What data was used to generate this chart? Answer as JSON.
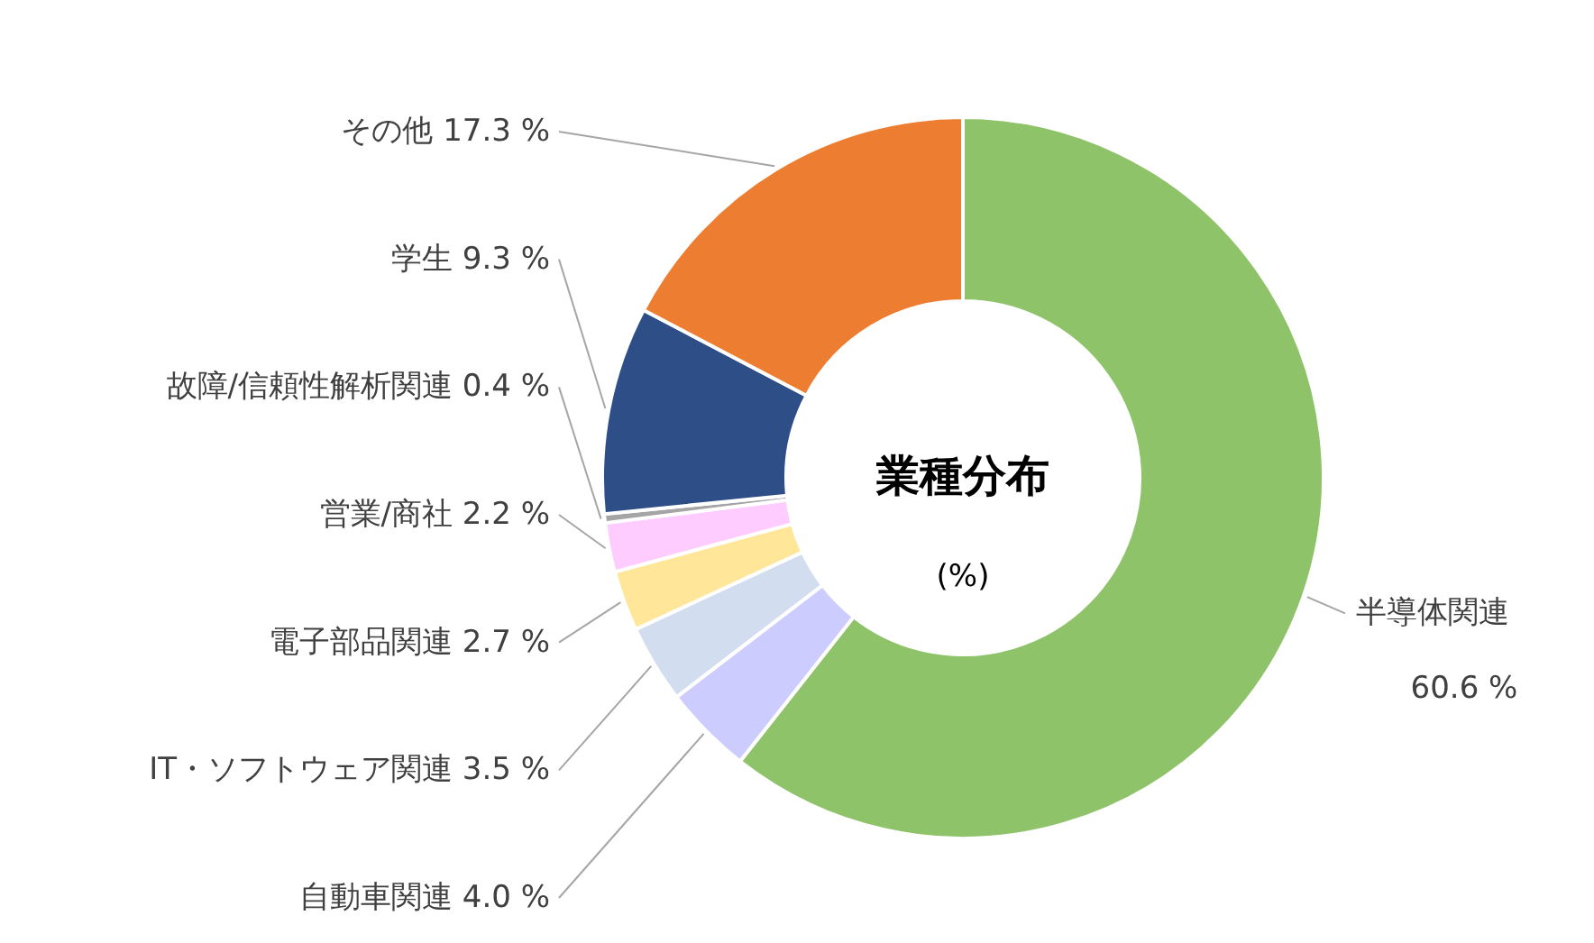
{
  "chart_data": {
    "type": "donut",
    "title": "業種分布",
    "subtitle": "(%)",
    "categories": [
      "半導体関連",
      "自動車関連",
      "IT・ソフトウェア関連",
      "電子部品関連",
      "営業/商社",
      "故障/信頼性解析関連",
      "学生",
      "その他"
    ],
    "values": [
      60.6,
      4.0,
      3.5,
      2.7,
      2.2,
      0.4,
      9.3,
      17.3
    ],
    "colors": [
      "#8fc36a",
      "#ccccff",
      "#d3ddf0",
      "#ffe699",
      "#ffccff",
      "#a5a5a5",
      "#2e4e87",
      "#ed7d31"
    ],
    "value_labels": [
      "60.6 %",
      "4.0 %",
      "3.5 %",
      "2.7 %",
      "2.2 %",
      "0.4 %",
      "9.3 %",
      "17.3 %"
    ]
  }
}
